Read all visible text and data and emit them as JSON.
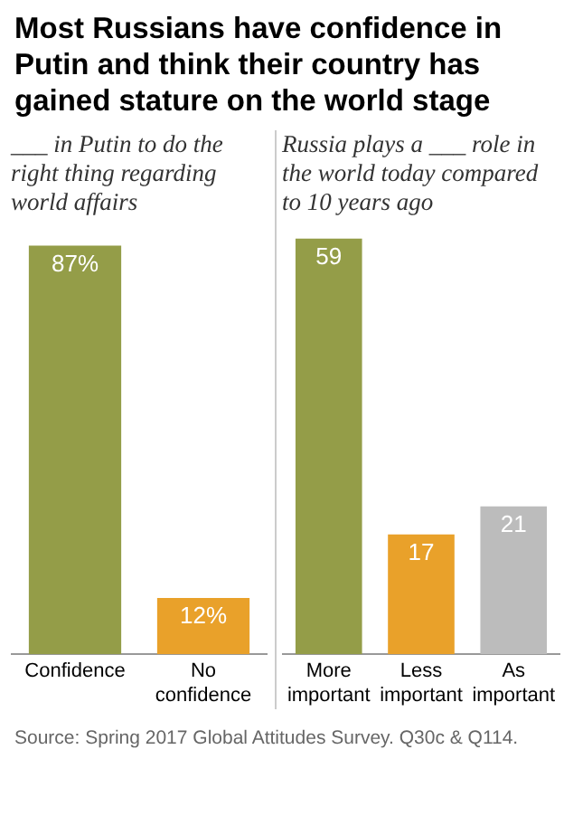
{
  "chart_data": [
    {
      "type": "bar",
      "title": "Most Russians have confidence in Putin and think their country has gained stature on the world stage",
      "subtitle": "___ in Putin to do the right thing regarding world affairs",
      "categories": [
        "Confidence",
        "No confidence"
      ],
      "values": [
        87,
        12
      ],
      "colors": [
        "#949d48",
        "#e9a12a"
      ],
      "value_labels": [
        "87%",
        "12%"
      ]
    },
    {
      "type": "bar",
      "subtitle": "Russia plays a ___ role in the world today compared to 10 years ago",
      "categories": [
        "More important",
        "Less important",
        "As important"
      ],
      "values": [
        59,
        17,
        21
      ],
      "colors": [
        "#949d48",
        "#e9a12a",
        "#bcbcbc"
      ],
      "data_labels": true,
      "annotations": [
        "Source: Spring 2017 Global Attitudes Survey. Q30c & Q114."
      ]
    }
  ]
}
